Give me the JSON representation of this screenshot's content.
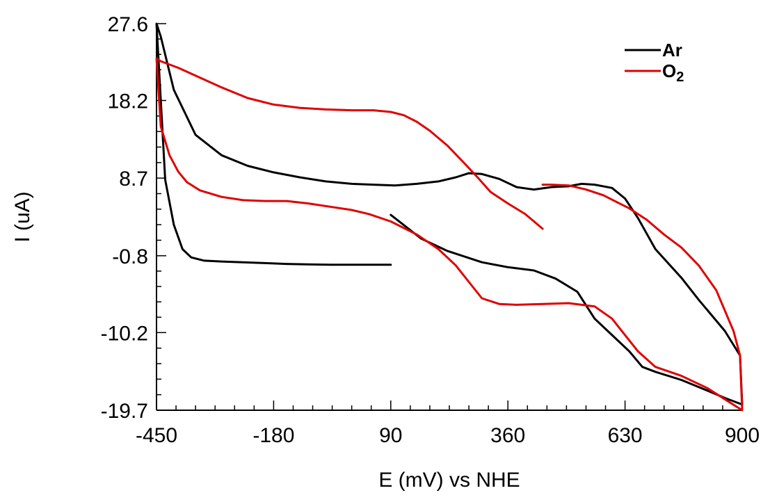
{
  "chart_data": {
    "type": "line",
    "xlabel": "E (mV) vs NHE",
    "ylabel": "I (uA)",
    "xlim": [
      -450,
      900
    ],
    "ylim": [
      -19.7,
      27.6
    ],
    "x_ticks": [
      -450,
      -180,
      90,
      360,
      630,
      900
    ],
    "x_tick_labels": [
      "-450",
      "-180",
      "90",
      "360",
      "630",
      "900"
    ],
    "y_ticks": [
      27.6,
      18.2,
      8.7,
      -0.8,
      -10.2,
      -19.7
    ],
    "y_tick_labels": [
      "27.6",
      "18.2",
      "8.7",
      "-0.8",
      "-10.2",
      "-19.7"
    ],
    "legend_position": "top-right",
    "series": [
      {
        "name": "Ar",
        "legend_sub": "",
        "color": "#000000",
        "x": [
          90,
          160,
          220,
          300,
          360,
          420,
          470,
          520,
          560,
          600,
          640,
          670,
          700,
          760,
          820,
          860,
          895,
          900,
          895,
          860,
          800,
          760,
          700,
          660,
          630,
          600,
          560,
          530,
          500,
          460,
          420,
          380,
          340,
          300,
          270,
          240,
          200,
          150,
          100,
          50,
          0,
          -60,
          -120,
          -180,
          -240,
          -300,
          -360,
          -410,
          -440,
          -450,
          -430,
          -410,
          -390,
          -370,
          -340,
          -300,
          -250,
          -200,
          -150,
          -100,
          -50,
          0,
          40,
          90
        ],
        "y": [
          4.2,
          1.3,
          -0.2,
          -1.6,
          -2.2,
          -2.6,
          -3.6,
          -5.2,
          -8.5,
          -10.5,
          -12.5,
          -14.4,
          -15.0,
          -16.0,
          -17.3,
          -18.2,
          -18.9,
          -19.0,
          -13.0,
          -10.0,
          -6.2,
          -3.5,
          0.0,
          3.8,
          6.2,
          7.5,
          7.9,
          8.0,
          7.7,
          7.6,
          7.3,
          7.6,
          8.6,
          9.2,
          9.3,
          8.8,
          8.3,
          8.0,
          7.8,
          7.9,
          8.0,
          8.3,
          8.8,
          9.4,
          10.2,
          11.5,
          14.0,
          19.5,
          26.0,
          27.6,
          8.5,
          3.0,
          0.0,
          -1.0,
          -1.4,
          -1.5,
          -1.6,
          -1.7,
          -1.8,
          -1.85,
          -1.9,
          -1.9,
          -1.9,
          -1.9
        ]
      },
      {
        "name": "O",
        "legend_sub": "2",
        "color": "#e00000",
        "x": [
          440,
          400,
          360,
          320,
          290,
          260,
          220,
          180,
          150,
          120,
          90,
          50,
          0,
          -60,
          -120,
          -180,
          -240,
          -300,
          -350,
          -400,
          -440,
          -450,
          -440,
          -420,
          -400,
          -380,
          -350,
          -300,
          -250,
          -200,
          -150,
          -100,
          -50,
          0,
          40,
          90,
          150,
          200,
          240,
          270,
          300,
          340,
          380,
          440,
          500,
          560,
          600,
          630,
          660,
          700,
          760,
          820,
          870,
          900,
          895,
          880,
          840,
          800,
          760,
          720,
          680,
          640,
          610,
          580,
          540,
          500,
          460,
          440
        ],
        "y": [
          2.5,
          4.3,
          5.6,
          7.0,
          8.8,
          10.5,
          12.7,
          14.5,
          15.6,
          16.4,
          16.8,
          17.0,
          17.0,
          17.1,
          17.3,
          17.7,
          18.5,
          19.8,
          21.0,
          22.2,
          23.0,
          23.3,
          15.0,
          11.5,
          9.5,
          8.2,
          7.2,
          6.4,
          6.0,
          5.9,
          5.9,
          5.6,
          5.2,
          4.8,
          4.3,
          3.4,
          1.8,
          0.0,
          -2.0,
          -4.0,
          -6.0,
          -6.7,
          -6.8,
          -6.7,
          -6.6,
          -7.0,
          -8.5,
          -10.5,
          -12.5,
          -14.4,
          -15.5,
          -17.0,
          -18.7,
          -19.7,
          -13.0,
          -10.0,
          -5.0,
          -2.0,
          0.2,
          1.8,
          3.6,
          5.0,
          5.8,
          6.6,
          7.3,
          7.8,
          7.9,
          7.9
        ]
      }
    ]
  }
}
